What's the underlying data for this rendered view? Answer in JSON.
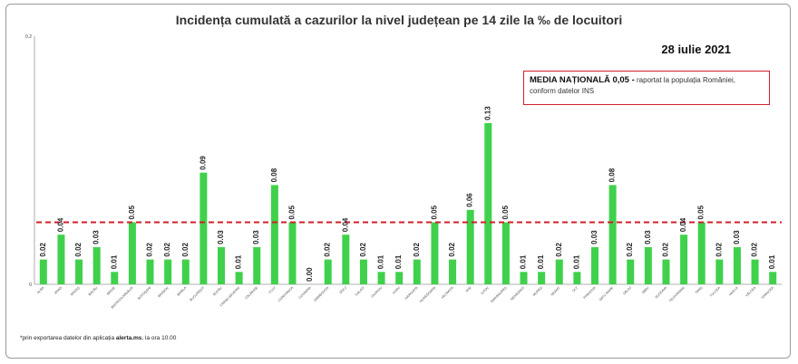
{
  "chart_data": {
    "type": "bar",
    "title": "Incidența cumulată a cazurilor la nivel județean pe 14 zile   la ‰ de locuitori",
    "date": "28 iulie 2021",
    "xlabel": "",
    "ylabel": "",
    "ylim": [
      0,
      0.2
    ],
    "y_ticks": [
      "0",
      "0.2"
    ],
    "reference_line": {
      "value": 0.05,
      "color": "#d01f2a",
      "style": "dashed"
    },
    "bar_color": "#3fd14b",
    "grid": false,
    "categories": [
      "ALBA",
      "ARAD",
      "ARGEȘ",
      "BACĂU",
      "BIHOR",
      "BISTRIȚA-NĂSĂUD",
      "BOTOȘANI",
      "BRAȘOV",
      "BRĂILA",
      "BUCUREȘTI",
      "BUZĂU",
      "CARAȘ-SEVERIN",
      "CĂLĂRAȘI",
      "CLUJ",
      "CONSTANȚA",
      "COVASNA",
      "DÂMBOVIȚA",
      "DOLJ",
      "GALAȚI",
      "GIURGIU",
      "GORJ",
      "HARGHITA",
      "HUNEDOARA",
      "IALOMIȚA",
      "IAȘI",
      "ILFOV",
      "MARAMUREȘ",
      "MEHEDINȚI",
      "MUREȘ",
      "NEAMȚ",
      "OLT",
      "PRAHOVA",
      "SATU MARE",
      "SĂLAJ",
      "SIBIU",
      "SUCEAVA",
      "TELEORMAN",
      "TIMIȘ",
      "TULCEA",
      "VASLUI",
      "VÂLCEA",
      "VRANCEA"
    ],
    "values": [
      0.02,
      0.04,
      0.02,
      0.03,
      0.01,
      0.05,
      0.02,
      0.02,
      0.02,
      0.09,
      0.03,
      0.01,
      0.03,
      0.08,
      0.05,
      0.0,
      0.02,
      0.04,
      0.02,
      0.01,
      0.01,
      0.02,
      0.05,
      0.02,
      0.06,
      0.13,
      0.05,
      0.01,
      0.01,
      0.02,
      0.01,
      0.03,
      0.08,
      0.02,
      0.03,
      0.02,
      0.04,
      0.05,
      0.02,
      0.03,
      0.02,
      0.01
    ],
    "value_labels": [
      "0.02",
      "0.04",
      "0.02",
      "0.03",
      "0.01",
      "0.05",
      "0.02",
      "0.02",
      "0.02",
      "0.09",
      "0.03",
      "0.01",
      "0.03",
      "0.08",
      "0.05",
      "0.00",
      "0.02",
      "0.04",
      "0.02",
      "0.01",
      "0.01",
      "0.02",
      "0.05",
      "0.02",
      "0.06",
      "0.13",
      "0.05",
      "0.01",
      "0.01",
      "0.02",
      "0.01",
      "0.03",
      "0.08",
      "0.02",
      "0.03",
      "0.02",
      "0.04",
      "0.05",
      "0.02",
      "0.03",
      "0.02",
      "0.01"
    ]
  },
  "annotation": {
    "media_title": "MEDIA NAȚIONALĂ 0,05 -",
    "media_text_1": " raportat la populația României,",
    "media_text_2": "conform datelor INS"
  },
  "footnote": {
    "prefix": "*prin exportarea datelor din aplicația ",
    "app": "alerta.ms",
    "suffix": ", la ora 10.00"
  }
}
